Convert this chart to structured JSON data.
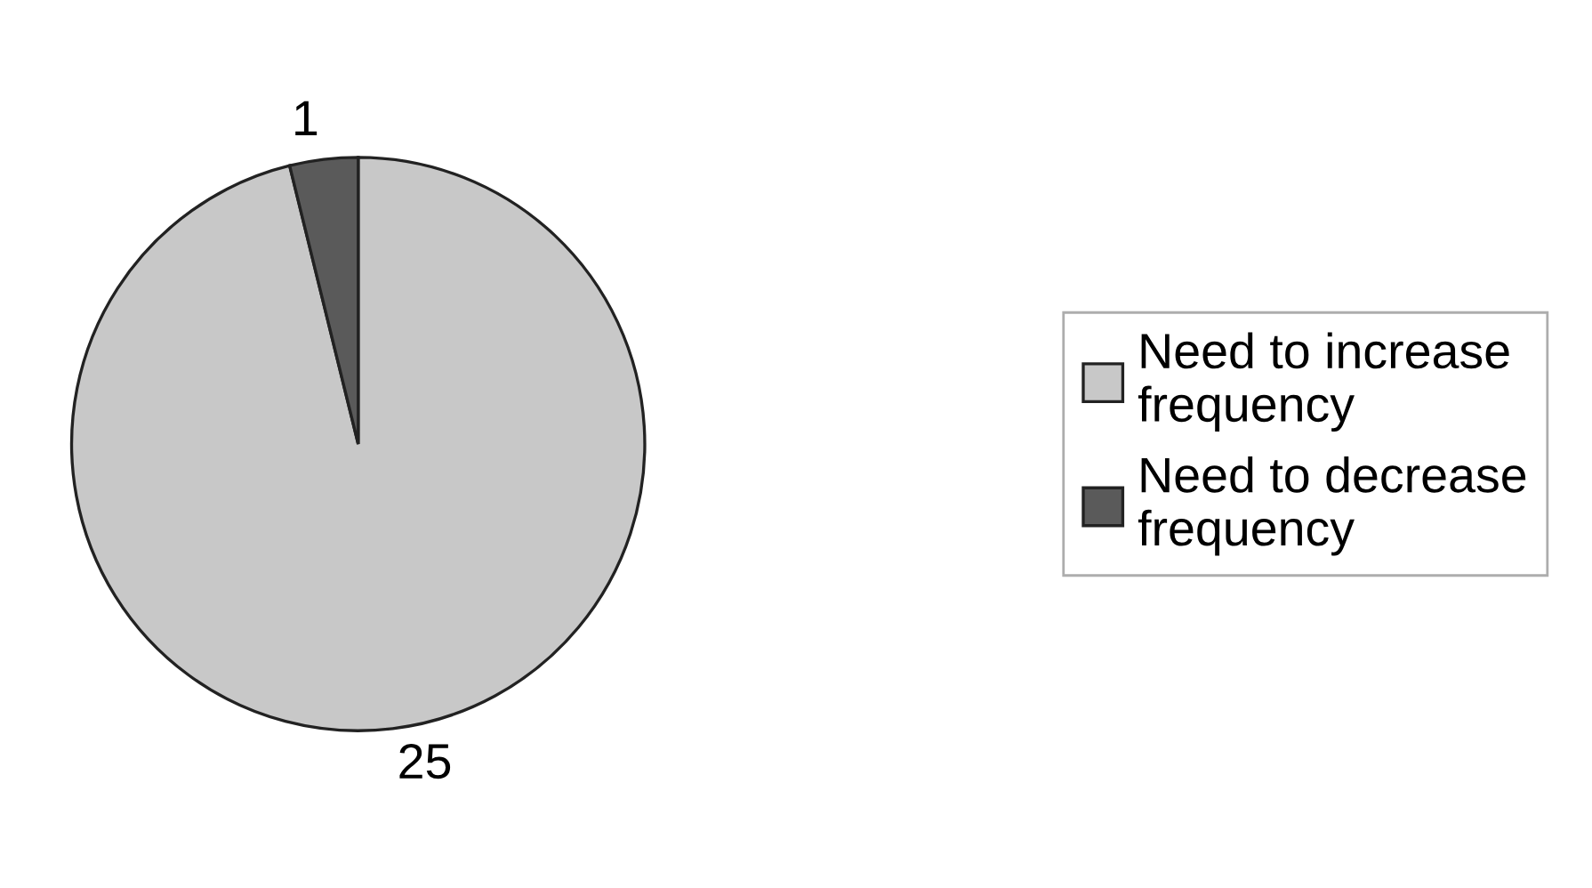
{
  "chart_data": {
    "type": "pie",
    "categories": [
      "Need to increase\nfrequency",
      "Need to decrease\nfrequency"
    ],
    "values": [
      25,
      1
    ],
    "colors": [
      "#c8c8c8",
      "#5a5a5a"
    ],
    "data_labels": true,
    "legend": "right"
  }
}
